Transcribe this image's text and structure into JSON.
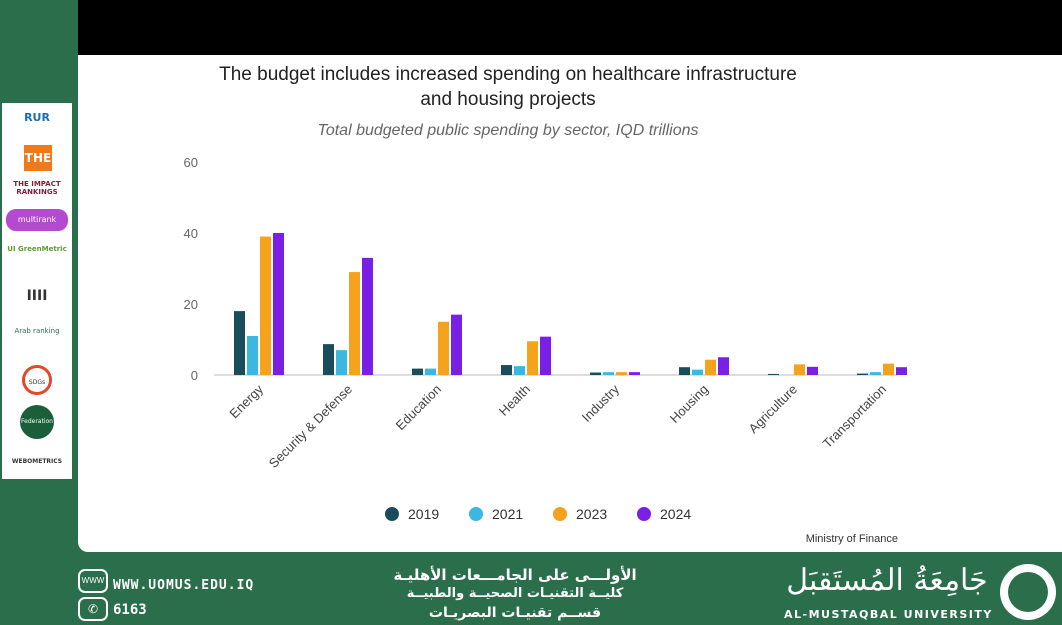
{
  "sidebar": {
    "logos": [
      "RUR",
      "THE",
      "THE IMPACT RANKINGS",
      "multirank",
      "UI GreenMetric",
      "IIII",
      "Arab ranking",
      "SDGs",
      "Federation",
      "WEBOMETRICS"
    ]
  },
  "footer": {
    "website": "WWW.UOMUS.EDU.IQ",
    "phone": "6163",
    "www_icon": "WWW",
    "line1": "الأولـــى على الجامـــعات الأهليـة",
    "line2": "كليــة التقنيـات الصحيــة والطبيــة",
    "line3": "قســم تقنيـات البصريـات",
    "university_ar": "جَامِعَةُ المُستَقبَل",
    "university_en": "AL-MUSTAQBAL UNIVERSITY"
  },
  "colors": {
    "green": "#2b6e4b",
    "c2019": "#1a4d5c",
    "c2021": "#3bb7e2",
    "c2023": "#f5a31c",
    "c2024": "#7a1fe6"
  },
  "chart_data": {
    "type": "bar",
    "title_line1": "The budget includes increased spending on healthcare infrastructure",
    "title_line2": "and housing projects",
    "subtitle": "Total budgeted public spending by sector, IQD trillions",
    "source": "Ministry of Finance",
    "categories": [
      "Energy",
      "Security & Defense",
      "Education",
      "Health",
      "Industry",
      "Housing",
      "Agriculture",
      "Transportation"
    ],
    "ylim": [
      0,
      60
    ],
    "yticks": [
      "60",
      "40",
      "20",
      "0"
    ],
    "series": [
      {
        "name": "2019",
        "color": "#1a4d5c",
        "values": [
          18,
          8.7,
          1.8,
          2.8,
          0.7,
          2.2,
          0.3,
          0.4
        ]
      },
      {
        "name": "2021",
        "color": "#3bb7e2",
        "values": [
          11,
          7,
          1.8,
          2.5,
          0.8,
          1.5,
          0,
          0.8
        ]
      },
      {
        "name": "2023",
        "color": "#f5a31c",
        "values": [
          39,
          29,
          15,
          9.5,
          0.8,
          4.3,
          3,
          3.2
        ]
      },
      {
        "name": "2024",
        "color": "#7a1fe6",
        "values": [
          40,
          33,
          17,
          10.8,
          0.8,
          5,
          2.3,
          2.2
        ]
      }
    ]
  }
}
